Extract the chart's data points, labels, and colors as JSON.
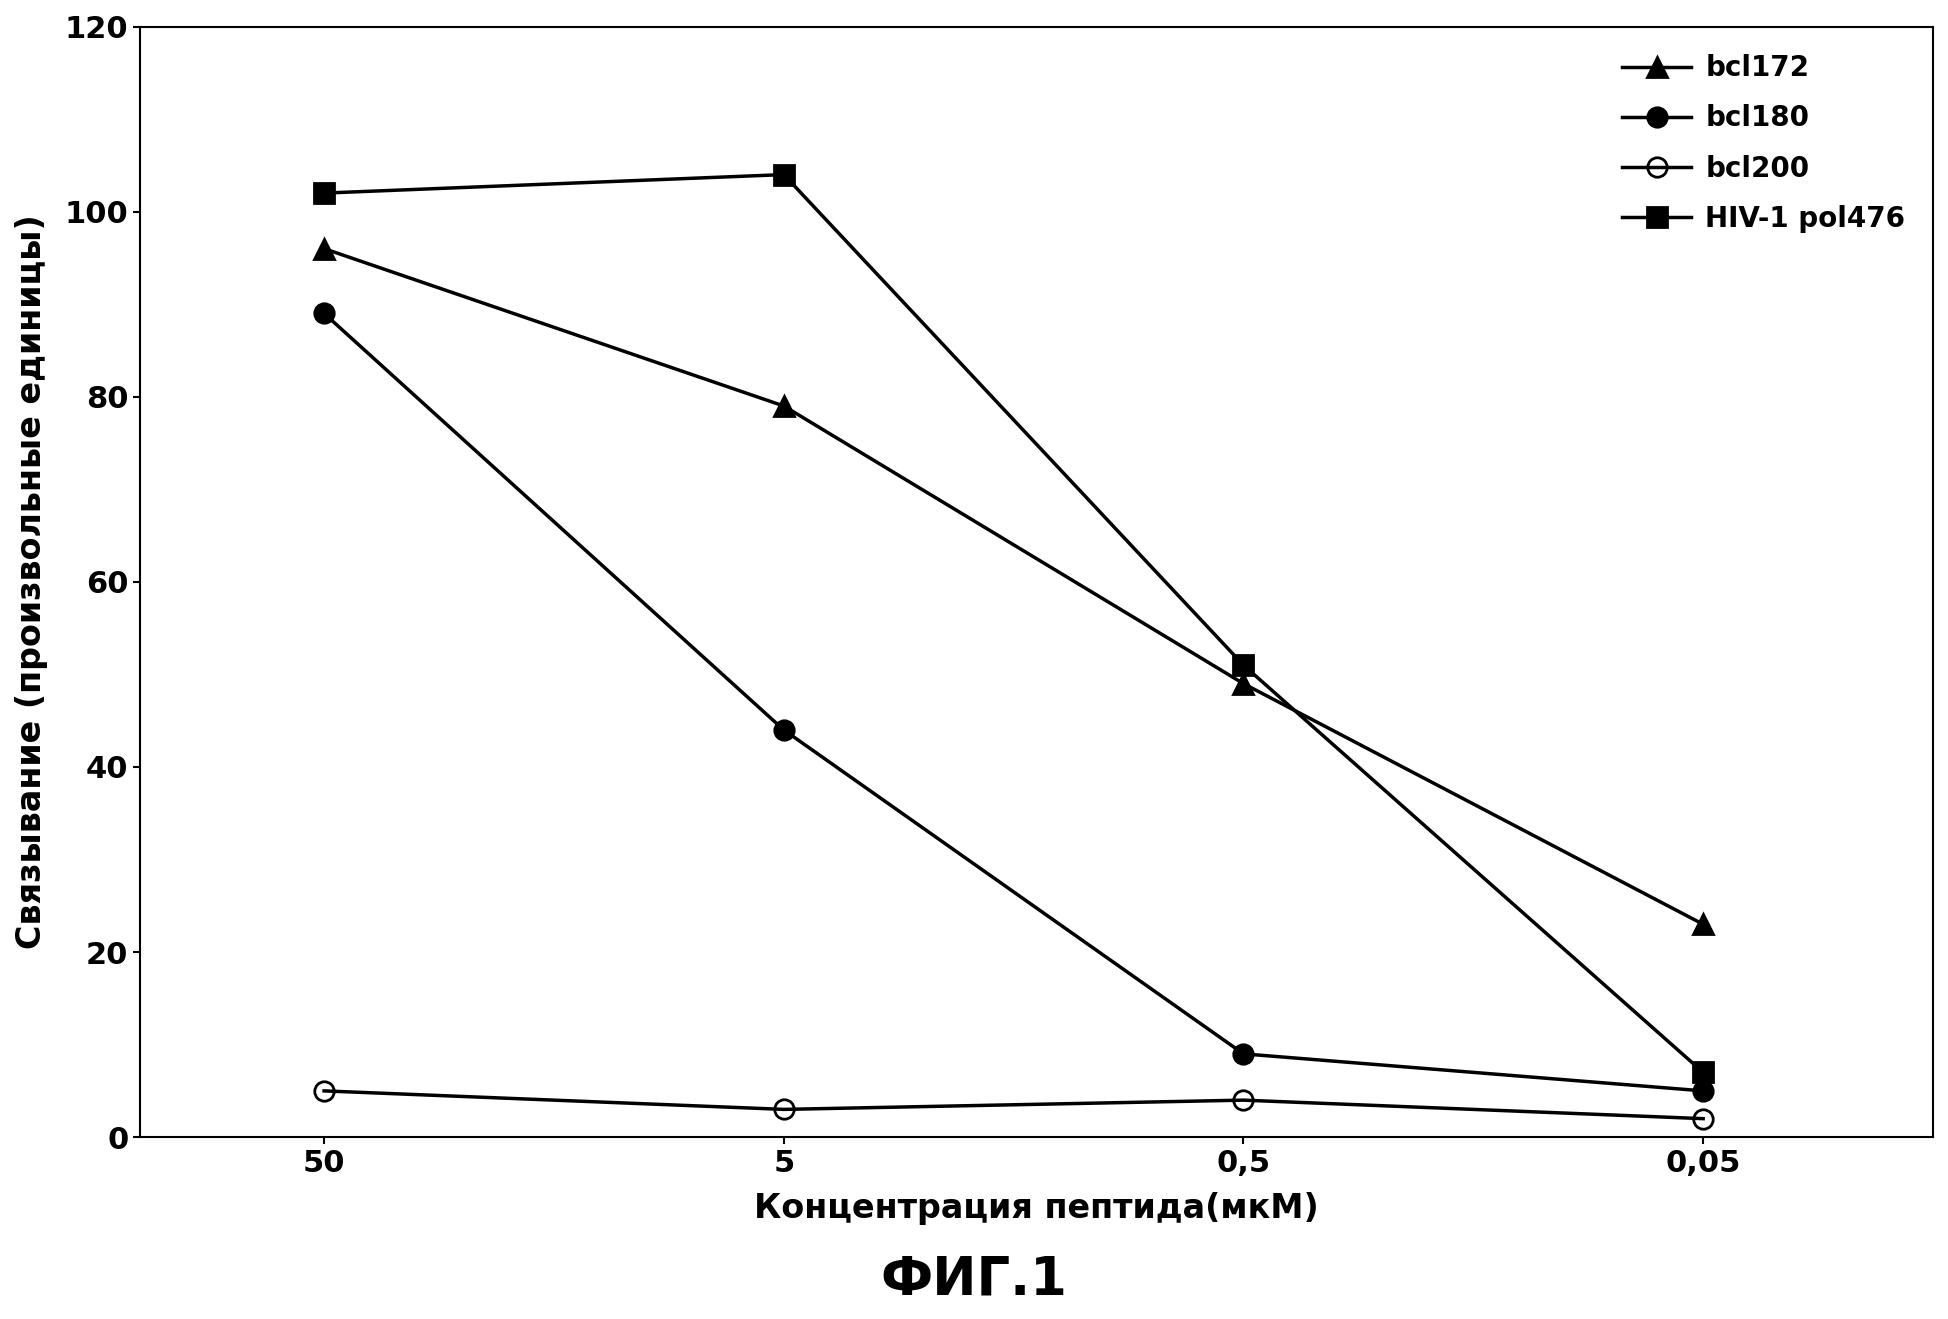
{
  "x_labels": [
    "50",
    "5",
    "0,5",
    "0,05"
  ],
  "series": [
    {
      "label": "bcl172",
      "values": [
        96,
        79,
        49,
        23
      ],
      "color": "#000000",
      "marker": "^",
      "marker_filled": true
    },
    {
      "label": "bcl180",
      "values": [
        89,
        44,
        9,
        5
      ],
      "color": "#000000",
      "marker": "o",
      "marker_filled": true
    },
    {
      "label": "bcl200",
      "values": [
        5,
        3,
        4,
        2
      ],
      "color": "#000000",
      "marker": "o",
      "marker_filled": false
    },
    {
      "label": "HIV-1 pol476",
      "values": [
        102,
        104,
        51,
        7
      ],
      "color": "#000000",
      "marker": "s",
      "marker_filled": true
    }
  ],
  "ylabel": "Связывание (произвольные единицы)",
  "xlabel": "Концентрация пептида(мкМ)",
  "figure_title": "ФИГ.1",
  "ylim": [
    0,
    120
  ],
  "yticks": [
    0,
    20,
    40,
    60,
    80,
    100,
    120
  ],
  "background_color": "#ffffff",
  "title_fontsize": 38,
  "axis_label_fontsize": 24,
  "tick_fontsize": 22,
  "legend_fontsize": 20,
  "marker_size": 14,
  "linewidth": 2.5,
  "figsize": [
    19.48,
    13.19
  ],
  "dpi": 100
}
